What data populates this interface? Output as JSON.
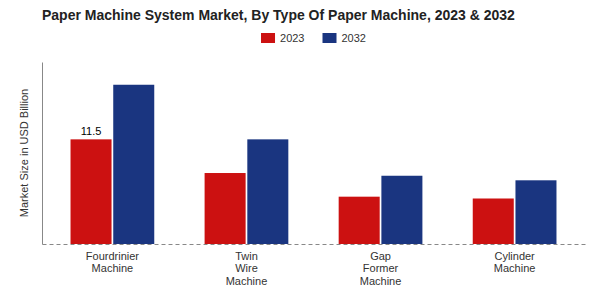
{
  "chart_data": {
    "type": "bar",
    "title": "Paper Machine System Market, By Type Of Paper Machine, 2023 & 2032",
    "ylabel": "Market Size in USD Billion",
    "categories": [
      "Fourdrinier\nMachine",
      "Twin\nWire\nMachine",
      "Gap\nFormer\nMachine",
      "Cylinder\nMachine"
    ],
    "series": [
      {
        "name": "2023",
        "color": "#cc1111",
        "values": [
          11.5,
          7.8,
          5.2,
          5.0
        ]
      },
      {
        "name": "2032",
        "color": "#1a3580",
        "values": [
          17.5,
          11.5,
          7.5,
          7.0
        ]
      }
    ],
    "annotations": [
      "11.5"
    ],
    "ylim": [
      0,
      20
    ],
    "tick_labels": "x",
    "grid": false,
    "legend": "top"
  }
}
